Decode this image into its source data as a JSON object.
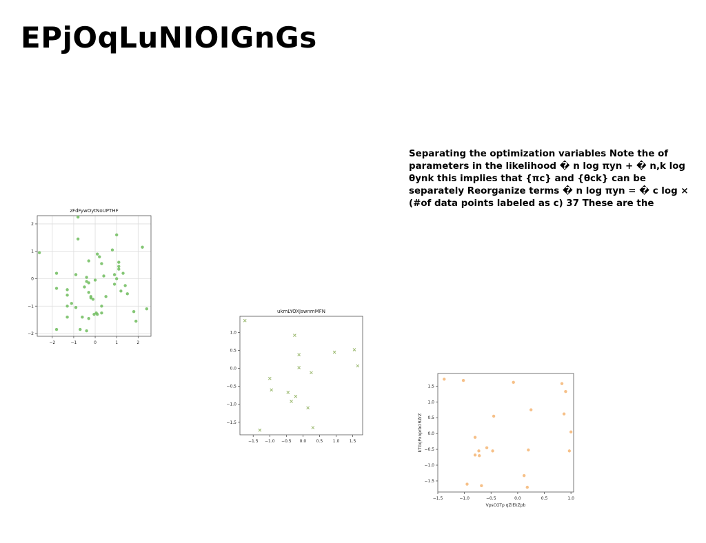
{
  "page": {
    "title": "EPjOqLuNIOIGnGs",
    "paragraph": "Separating the optimization variables Note the of parameters in the likelihood � n log πyn + � n,k log θynk this implies that {πc} and {θck} can be separately Reorganize terms � n log πyn = � c log × (#of data points labeled as c) 37 These are the"
  },
  "chart_data": [
    {
      "type": "scatter",
      "title": "zFdFywOytNoUPTHF",
      "xlabel": "",
      "ylabel": "",
      "xlim": [
        -2.7,
        2.6
      ],
      "ylim": [
        -2.1,
        2.3
      ],
      "xticks": [
        -2,
        -1,
        0,
        1,
        2
      ],
      "yticks": [
        -2,
        -1,
        0,
        1,
        2
      ],
      "grid": true,
      "marker": "circle",
      "color": "#77c066",
      "points": [
        [
          -2.6,
          0.95
        ],
        [
          -1.8,
          0.2
        ],
        [
          -1.8,
          -0.35
        ],
        [
          -1.3,
          -0.4
        ],
        [
          -1.3,
          -0.6
        ],
        [
          -1.3,
          -1.0
        ],
        [
          -1.1,
          -0.9
        ],
        [
          -1.3,
          -1.4
        ],
        [
          -0.9,
          0.15
        ],
        [
          -0.9,
          -1.05
        ],
        [
          -0.8,
          2.25
        ],
        [
          -0.8,
          1.45
        ],
        [
          -0.5,
          -0.3
        ],
        [
          -0.4,
          0.05
        ],
        [
          -0.4,
          -0.1
        ],
        [
          -0.3,
          0.65
        ],
        [
          -0.3,
          -0.15
        ],
        [
          -0.3,
          -0.5
        ],
        [
          -0.2,
          -0.65
        ],
        [
          -0.1,
          -0.75
        ],
        [
          0.0,
          -0.05
        ],
        [
          -0.05,
          -1.3
        ],
        [
          0.05,
          -1.25
        ],
        [
          0.1,
          0.9
        ],
        [
          0.2,
          0.8
        ],
        [
          0.3,
          0.55
        ],
        [
          0.3,
          -1.25
        ],
        [
          0.3,
          -1.0
        ],
        [
          0.4,
          0.1
        ],
        [
          0.5,
          -0.65
        ],
        [
          0.8,
          1.05
        ],
        [
          0.9,
          0.15
        ],
        [
          0.9,
          -0.2
        ],
        [
          1.0,
          1.6
        ],
        [
          1.0,
          0.0
        ],
        [
          1.1,
          0.6
        ],
        [
          1.1,
          0.45
        ],
        [
          1.1,
          0.35
        ],
        [
          1.2,
          -0.45
        ],
        [
          1.3,
          0.2
        ],
        [
          1.4,
          -0.25
        ],
        [
          1.5,
          -0.55
        ],
        [
          1.8,
          -1.2
        ],
        [
          1.9,
          -1.55
        ],
        [
          2.2,
          1.15
        ],
        [
          2.4,
          -1.1
        ],
        [
          -0.6,
          -1.4
        ],
        [
          -0.3,
          -1.45
        ],
        [
          -0.7,
          -1.85
        ],
        [
          -0.4,
          -1.9
        ],
        [
          -1.8,
          -1.85
        ],
        [
          0.1,
          -1.3
        ],
        [
          -0.2,
          -0.7
        ]
      ]
    },
    {
      "type": "scatter",
      "title": "ukmLYOXJswnmMFN",
      "xlabel": "",
      "ylabel": "",
      "xlim": [
        -1.9,
        1.8
      ],
      "ylim": [
        -1.85,
        1.45
      ],
      "xticks": [
        -1.5,
        -1.0,
        -0.5,
        0.0,
        0.5,
        1.0,
        1.5
      ],
      "yticks": [
        -1.5,
        -1.0,
        -0.5,
        0.0,
        0.5,
        1.0
      ],
      "grid": false,
      "marker": "x",
      "color": "#9ab86e",
      "points": [
        [
          -1.75,
          1.33
        ],
        [
          -1.3,
          -1.72
        ],
        [
          -1.0,
          -0.28
        ],
        [
          -0.95,
          -0.6
        ],
        [
          -0.45,
          -0.67
        ],
        [
          -0.35,
          -0.92
        ],
        [
          -0.25,
          0.92
        ],
        [
          -0.22,
          -0.78
        ],
        [
          -0.12,
          0.38
        ],
        [
          -0.12,
          0.02
        ],
        [
          0.15,
          -1.1
        ],
        [
          0.25,
          -0.12
        ],
        [
          0.3,
          -1.65
        ],
        [
          0.95,
          0.45
        ],
        [
          1.55,
          0.52
        ],
        [
          1.65,
          0.07
        ]
      ]
    },
    {
      "type": "scatter",
      "title": "",
      "xlabel": "VpsCGTp qZIEkZpb",
      "ylabel": "kTGqPxnprbcIRZrZ",
      "xlim": [
        -1.5,
        1.05
      ],
      "ylim": [
        -1.85,
        1.9
      ],
      "xticks": [
        -1.5,
        -1.0,
        -0.5,
        0.0,
        0.5,
        1.0
      ],
      "yticks": [
        -1.5,
        -1.0,
        -0.5,
        0.0,
        0.5,
        1.0,
        1.5
      ],
      "grid": false,
      "marker": "circle",
      "color": "#f5b97b",
      "points": [
        [
          -1.38,
          1.72
        ],
        [
          -1.02,
          1.68
        ],
        [
          -0.95,
          -1.6
        ],
        [
          -0.8,
          -0.12
        ],
        [
          -0.8,
          -0.68
        ],
        [
          -0.73,
          -0.55
        ],
        [
          -0.72,
          -0.7
        ],
        [
          -0.68,
          -1.65
        ],
        [
          -0.58,
          -0.45
        ],
        [
          -0.47,
          -0.55
        ],
        [
          -0.45,
          0.55
        ],
        [
          -0.08,
          1.62
        ],
        [
          0.12,
          -1.33
        ],
        [
          0.18,
          -1.7
        ],
        [
          0.2,
          -0.52
        ],
        [
          0.25,
          0.75
        ],
        [
          0.83,
          1.58
        ],
        [
          0.87,
          0.62
        ],
        [
          0.9,
          1.33
        ],
        [
          0.97,
          -0.55
        ],
        [
          1.0,
          0.05
        ]
      ]
    }
  ]
}
